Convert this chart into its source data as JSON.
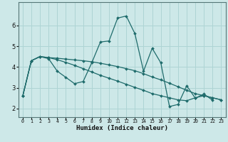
{
  "title": "",
  "xlabel": "Humidex (Indice chaleur)",
  "ylabel": "",
  "background_color": "#cde8e8",
  "grid_color": "#aed4d4",
  "line_color": "#1e6b6b",
  "marker": "D",
  "marker_size": 2.0,
  "xlim": [
    -0.5,
    23.5
  ],
  "ylim": [
    1.6,
    7.1
  ],
  "yticks": [
    2,
    3,
    4,
    5,
    6
  ],
  "xticks": [
    0,
    1,
    2,
    3,
    4,
    5,
    6,
    7,
    8,
    9,
    10,
    11,
    12,
    13,
    14,
    15,
    16,
    17,
    18,
    19,
    20,
    21,
    22,
    23
  ],
  "xtick_labels": [
    "0",
    "1",
    "2",
    "3",
    "4",
    "5",
    "6",
    "7",
    "8",
    "9",
    "10",
    "11",
    "12",
    "13",
    "14",
    "15",
    "16",
    "17",
    "18",
    "19",
    "20",
    "21",
    "22",
    "23"
  ],
  "series": [
    [
      2.6,
      4.3,
      4.5,
      4.4,
      3.8,
      3.5,
      3.2,
      3.3,
      4.2,
      5.2,
      5.25,
      6.35,
      6.45,
      5.6,
      3.8,
      4.9,
      4.2,
      2.1,
      2.2,
      3.1,
      2.5,
      2.7,
      2.4,
      null
    ],
    [
      2.6,
      4.3,
      4.5,
      4.45,
      4.42,
      4.38,
      4.34,
      4.3,
      4.25,
      4.18,
      4.1,
      4.02,
      3.92,
      3.82,
      3.68,
      3.52,
      3.38,
      3.22,
      3.05,
      2.88,
      2.72,
      2.62,
      2.52,
      2.42
    ],
    [
      2.6,
      4.3,
      4.5,
      4.45,
      4.35,
      4.22,
      4.08,
      3.92,
      3.76,
      3.6,
      3.46,
      3.32,
      3.17,
      3.02,
      2.88,
      2.72,
      2.62,
      2.52,
      2.42,
      2.38,
      2.52,
      2.62,
      2.52,
      2.42
    ]
  ]
}
